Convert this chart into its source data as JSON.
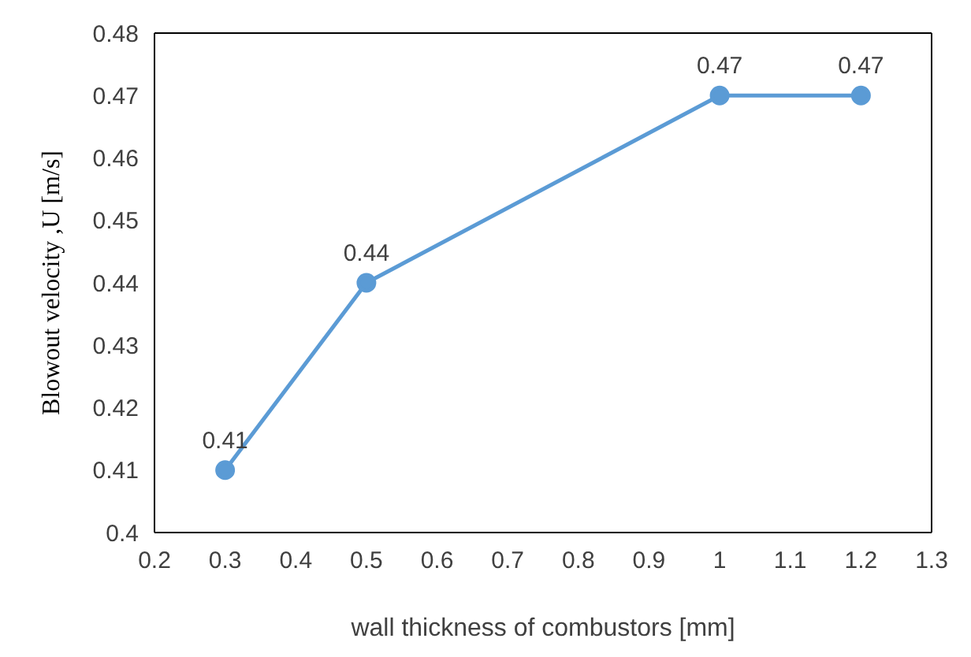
{
  "chart_data": {
    "type": "line",
    "xlabel": "wall thickness of combustors [mm]",
    "ylabel": "Blowout  velocity ,U [m/s]",
    "x": [
      0.3,
      0.5,
      1,
      1.2
    ],
    "series": [
      {
        "color": "#5b9bd5",
        "values": [
          0.41,
          0.44,
          0.47,
          0.47
        ]
      }
    ],
    "xlim": [
      0.2,
      1.3
    ],
    "xticks": [
      0.2,
      0.3,
      0.4,
      0.5,
      0.6,
      0.7,
      0.8,
      0.9,
      1,
      1.1,
      1.2,
      1.3
    ],
    "ylim": [
      0.4,
      0.48
    ],
    "yticks": [
      0.4,
      0.41,
      0.42,
      0.43,
      0.44,
      0.45,
      0.46,
      0.47,
      0.48
    ],
    "data_labels": true,
    "marker": "circle",
    "line_style": "solid",
    "grid": false
  }
}
